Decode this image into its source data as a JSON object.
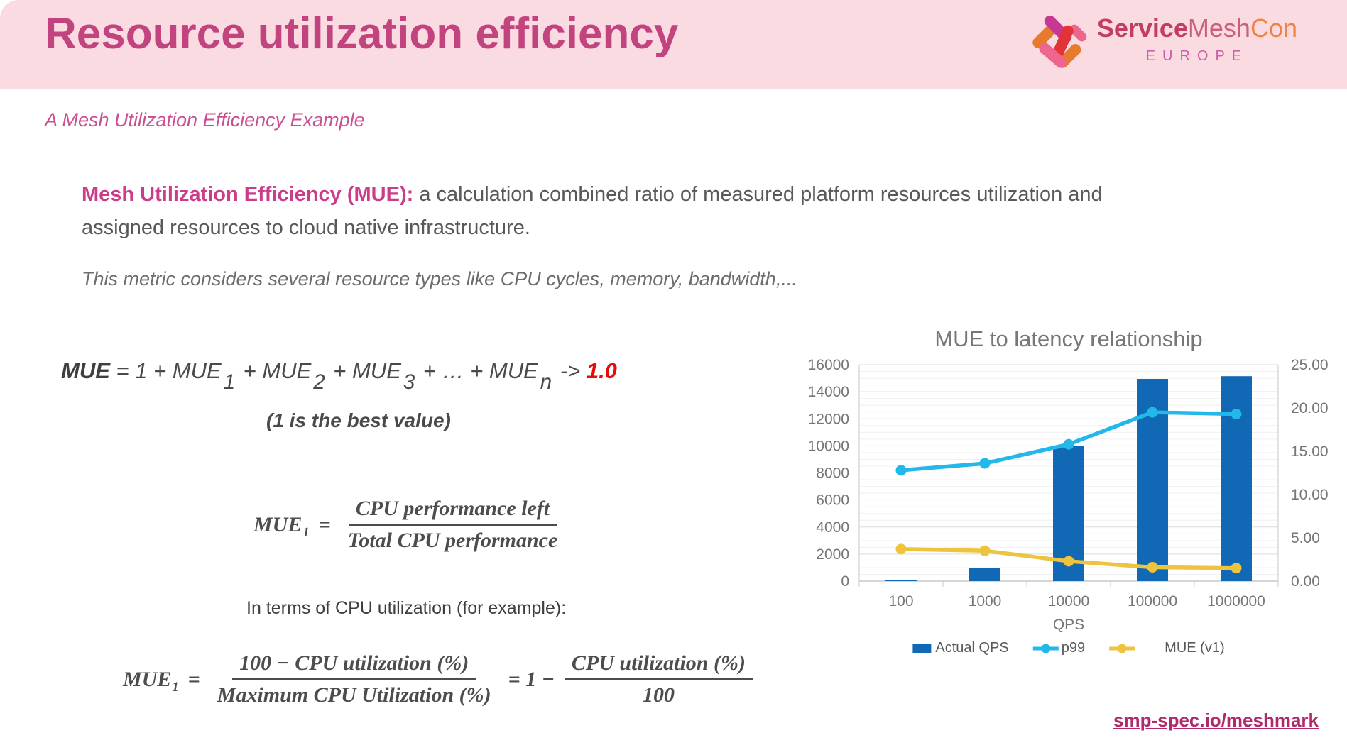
{
  "header": {
    "title": "Resource utilization efficiency",
    "logo": {
      "service": "Service",
      "mesh": "Mesh",
      "con": "Con",
      "region": "EUROPE"
    }
  },
  "subtitle": "A Mesh Utilization Efficiency Example",
  "definition": {
    "term": "Mesh Utilization Efficiency (MUE):",
    "rest": " a calculation combined ratio of measured platform resources utilization and assigned resources to cloud native infrastructure."
  },
  "note": "This metric considers several resource types like CPU cycles, memory, bandwidth,...",
  "formula_sum": {
    "lhs": "MUE",
    "p1": " = 1 + MUE",
    "s1": "1",
    "p2": " + MUE",
    "s2": "2",
    "p3": " + MUE",
    "s3": "3",
    "p4": " + … + MUE",
    "s4": "n",
    "arrow": " -> ",
    "result": "1.0"
  },
  "best_value": "(1 is the best value)",
  "formula_mue1": {
    "lhs": "MUE",
    "sub": "1",
    "eq": "=",
    "num": "CPU performance left",
    "den": "Total CPU performance"
  },
  "cpu_note": "In terms of CPU utilization (for example):",
  "formula_cpu": {
    "lhs": "MUE",
    "sub": "1",
    "eq": "=",
    "num1": "100 − CPU utilization (%)",
    "den1": "Maximum CPU Utilization (%)",
    "mid": "= 1 −",
    "num2": "CPU utilization (%)",
    "den2": "100"
  },
  "link": "smp-spec.io/meshmark",
  "colors": {
    "header_bg": "#fbdbe2",
    "title_pink": "#c2447e",
    "accent_pink": "#cb3d88",
    "result_red": "#e60c0c",
    "link_pink": "#b02a6b",
    "bar_blue": "#1168b4",
    "line_cyan": "#23b8ea",
    "line_yellow": "#eec33d"
  },
  "chart_data": {
    "type": "bar",
    "title": "MUE to latency relationship",
    "xlabel": "QPS",
    "categories": [
      "100",
      "1000",
      "10000",
      "100000",
      "1000000"
    ],
    "left_axis": {
      "min": 0,
      "max": 16000,
      "step": 2000,
      "minor_step": 500
    },
    "right_axis": {
      "min": 0,
      "max": 25,
      "step": 5,
      "decimals": 2
    },
    "series": [
      {
        "name": "Actual QPS",
        "type": "bar",
        "axis": "left",
        "color": "#1168b4",
        "values": [
          100,
          950,
          10000,
          14950,
          15150
        ]
      },
      {
        "name": "p99",
        "type": "line",
        "axis": "right",
        "color": "#23b8ea",
        "values": [
          12.8,
          13.6,
          15.8,
          19.5,
          19.3
        ]
      },
      {
        "name": "MUE (v1)",
        "type": "line",
        "axis": "right",
        "color": "#eec33d",
        "values": [
          3.7,
          3.5,
          2.3,
          1.6,
          1.5
        ]
      }
    ],
    "legend_position": "bottom",
    "grid": {
      "major": "#dcdcdc",
      "minor": "#f0f0f0",
      "axis": "#c9c9c9"
    }
  }
}
